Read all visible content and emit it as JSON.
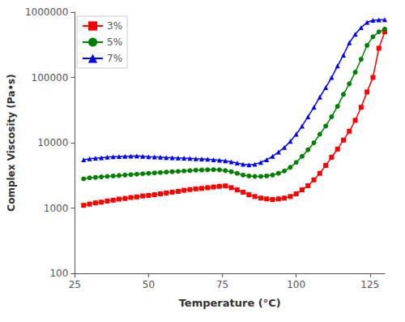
{
  "chart_data": {
    "type": "line",
    "xlabel": "Temperature (°C)",
    "ylabel": "Complex Viscosity (Pa•s)",
    "x": [
      28,
      30,
      32,
      34,
      36,
      38,
      40,
      42,
      44,
      46,
      48,
      50,
      52,
      54,
      56,
      58,
      60,
      62,
      64,
      66,
      68,
      70,
      72,
      74,
      76,
      78,
      80,
      82,
      84,
      86,
      88,
      90,
      92,
      94,
      96,
      98,
      100,
      102,
      104,
      106,
      108,
      110,
      112,
      114,
      116,
      118,
      120,
      122,
      124,
      126,
      128,
      130
    ],
    "series": [
      {
        "name": "3%",
        "color": "red",
        "marker": "square",
        "values": [
          1100,
          1150,
          1200,
          1230,
          1280,
          1320,
          1370,
          1400,
          1450,
          1480,
          1530,
          1560,
          1600,
          1650,
          1700,
          1750,
          1800,
          1870,
          1920,
          1970,
          2000,
          2050,
          2100,
          2150,
          2180,
          2050,
          1900,
          1750,
          1600,
          1500,
          1420,
          1380,
          1350,
          1380,
          1420,
          1500,
          1650,
          1900,
          2200,
          2700,
          3400,
          4500,
          6000,
          8000,
          11000,
          15000,
          22000,
          35000,
          60000,
          100000,
          280000,
          500000
        ]
      },
      {
        "name": "5%",
        "color": "green",
        "marker": "circle",
        "values": [
          2800,
          2900,
          2950,
          3000,
          3050,
          3100,
          3150,
          3200,
          3250,
          3300,
          3350,
          3400,
          3450,
          3500,
          3550,
          3600,
          3650,
          3700,
          3750,
          3800,
          3820,
          3850,
          3870,
          3850,
          3750,
          3600,
          3400,
          3200,
          3100,
          3050,
          3050,
          3100,
          3200,
          3400,
          3700,
          4200,
          5000,
          6200,
          7800,
          10000,
          13500,
          18000,
          25000,
          36000,
          55000,
          80000,
          120000,
          190000,
          310000,
          420000,
          500000,
          550000
        ]
      },
      {
        "name": "7%",
        "color": "blue",
        "marker": "triangle",
        "values": [
          5500,
          5700,
          5800,
          5900,
          6000,
          6100,
          6150,
          6200,
          6250,
          6300,
          6200,
          6100,
          6050,
          6000,
          5950,
          5900,
          5850,
          5800,
          5750,
          5700,
          5650,
          5600,
          5500,
          5400,
          5300,
          5100,
          4900,
          4700,
          4600,
          4700,
          5000,
          5500,
          6200,
          7200,
          8500,
          10500,
          13500,
          18000,
          25000,
          35000,
          50000,
          70000,
          100000,
          150000,
          220000,
          340000,
          460000,
          580000,
          700000,
          750000,
          760000,
          770000
        ]
      }
    ],
    "xlim": [
      25,
      130
    ],
    "ylim": [
      100,
      1000000
    ],
    "xticks": [
      25,
      50,
      75,
      100,
      125
    ],
    "yticks": [
      100,
      1000,
      10000,
      100000,
      1000000
    ],
    "log": "y",
    "grid": false,
    "legend": "upper left"
  }
}
